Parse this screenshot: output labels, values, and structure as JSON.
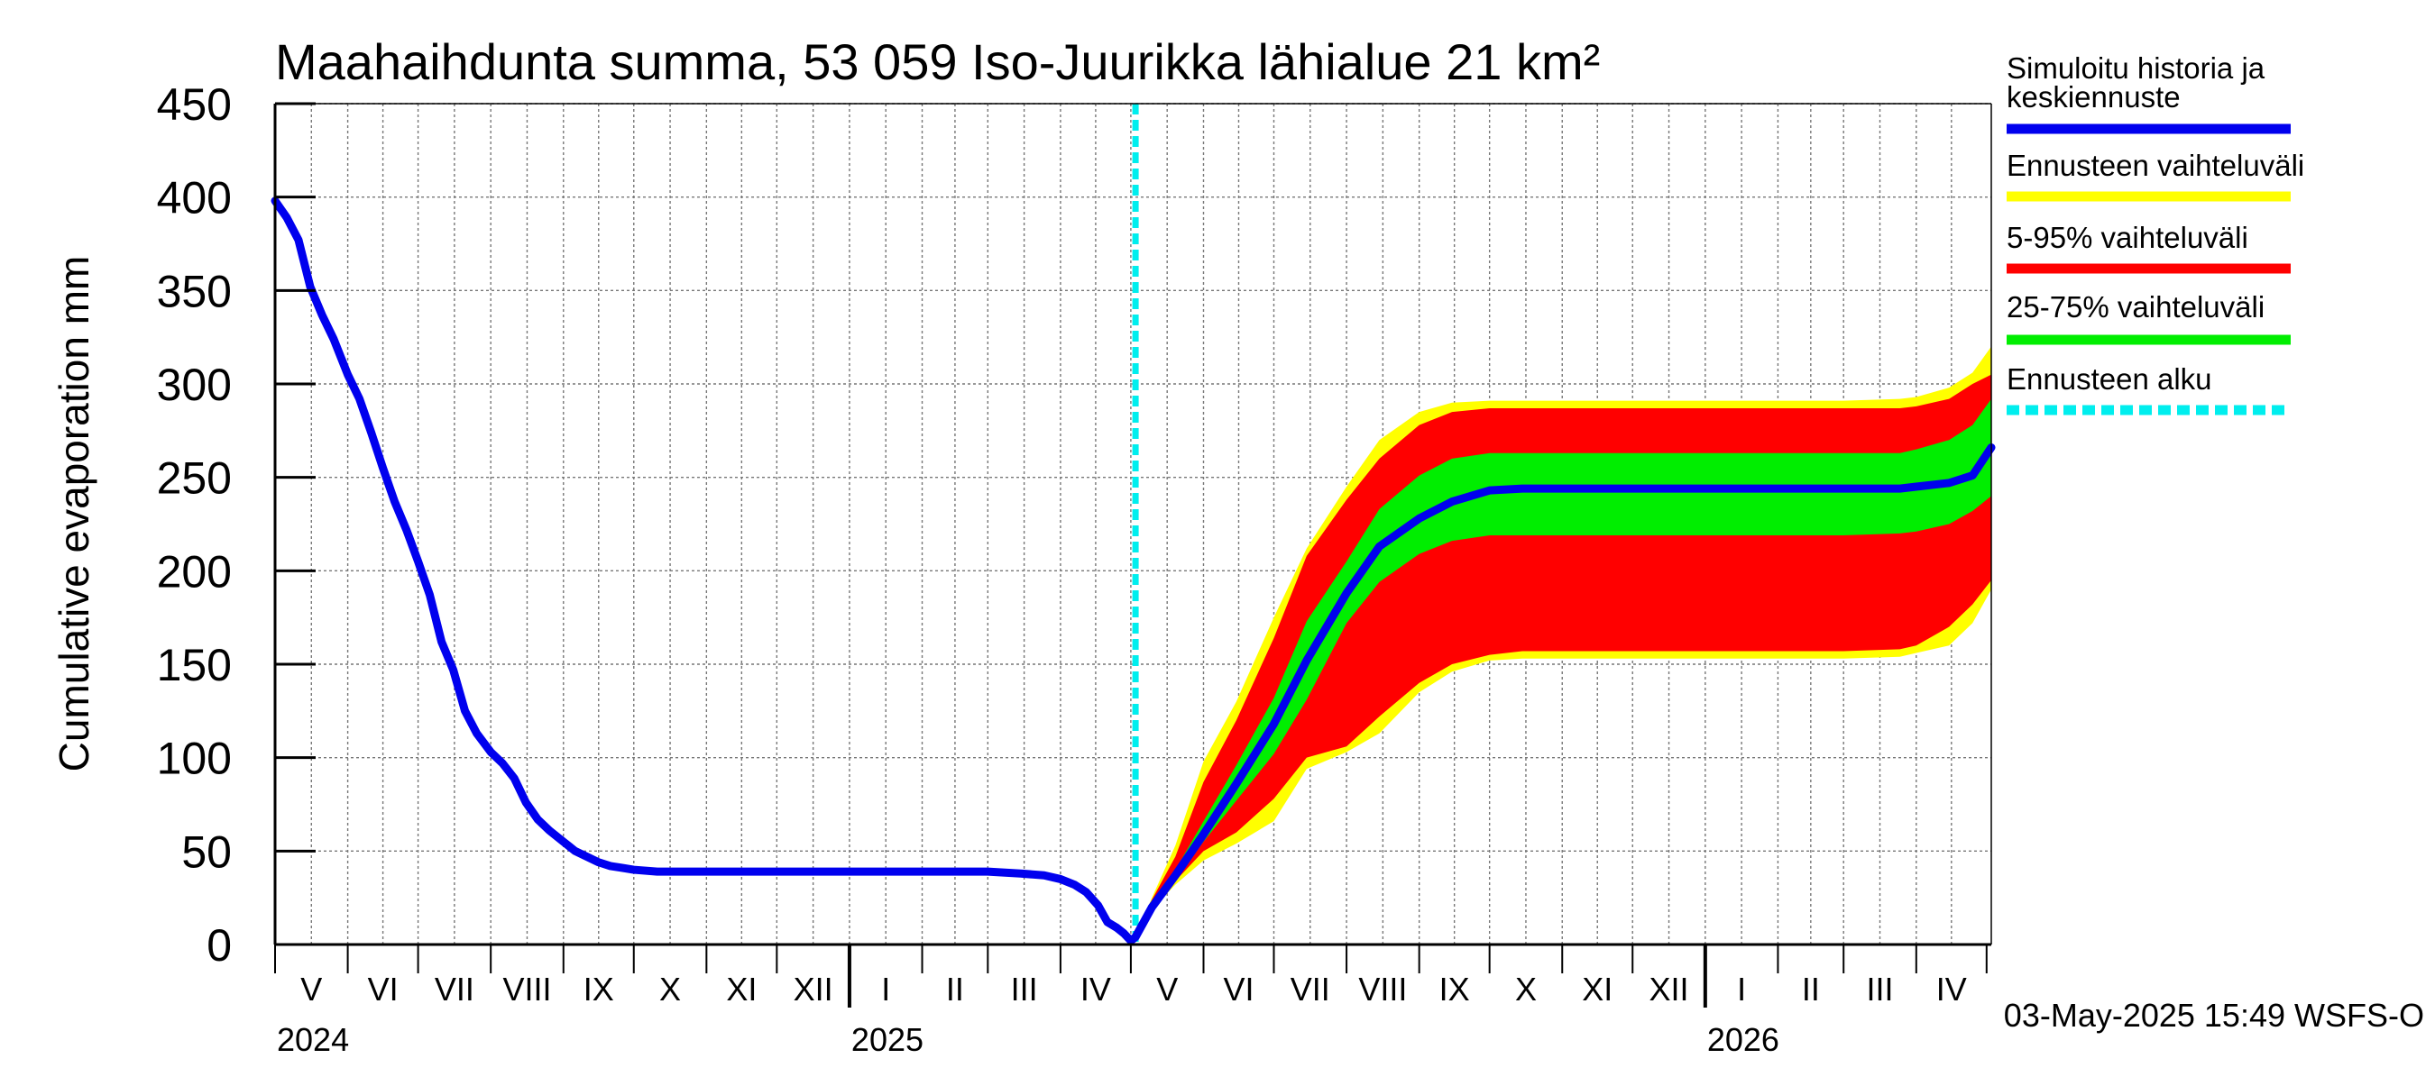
{
  "chart_data": {
    "type": "area",
    "title": "Maahaihdunta summa, 53 059 Iso-Juurikka lähialue 21 km²",
    "ylabel": "Cumulative evaporation   mm",
    "xlabel": "",
    "ylim": [
      0,
      450
    ],
    "yticks": [
      0,
      50,
      100,
      150,
      200,
      250,
      300,
      350,
      400,
      450
    ],
    "xlim": [
      "2024-05-01",
      "2026-05-03"
    ],
    "grid": true,
    "legend_position": "right",
    "months": [
      {
        "label": "V",
        "start": "2024-05-01",
        "end": "2024-06-01"
      },
      {
        "label": "VI",
        "start": "2024-06-01",
        "end": "2024-07-01"
      },
      {
        "label": "VII",
        "start": "2024-07-01",
        "end": "2024-08-01"
      },
      {
        "label": "VIII",
        "start": "2024-08-01",
        "end": "2024-09-01"
      },
      {
        "label": "IX",
        "start": "2024-09-01",
        "end": "2024-10-01"
      },
      {
        "label": "X",
        "start": "2024-10-01",
        "end": "2024-11-01"
      },
      {
        "label": "XI",
        "start": "2024-11-01",
        "end": "2024-12-01"
      },
      {
        "label": "XII",
        "start": "2024-12-01",
        "end": "2025-01-01"
      },
      {
        "label": "I",
        "start": "2025-01-01",
        "end": "2025-02-01"
      },
      {
        "label": "II",
        "start": "2025-02-01",
        "end": "2025-03-01"
      },
      {
        "label": "III",
        "start": "2025-03-01",
        "end": "2025-04-01"
      },
      {
        "label": "IV",
        "start": "2025-04-01",
        "end": "2025-05-01"
      },
      {
        "label": "V",
        "start": "2025-05-01",
        "end": "2025-06-01"
      },
      {
        "label": "VI",
        "start": "2025-06-01",
        "end": "2025-07-01"
      },
      {
        "label": "VII",
        "start": "2025-07-01",
        "end": "2025-08-01"
      },
      {
        "label": "VIII",
        "start": "2025-08-01",
        "end": "2025-09-01"
      },
      {
        "label": "IX",
        "start": "2025-09-01",
        "end": "2025-10-01"
      },
      {
        "label": "X",
        "start": "2025-10-01",
        "end": "2025-11-01"
      },
      {
        "label": "XI",
        "start": "2025-11-01",
        "end": "2025-12-01"
      },
      {
        "label": "XII",
        "start": "2025-12-01",
        "end": "2026-01-01"
      },
      {
        "label": "I",
        "start": "2026-01-01",
        "end": "2026-02-01"
      },
      {
        "label": "II",
        "start": "2026-02-01",
        "end": "2026-03-01"
      },
      {
        "label": "III",
        "start": "2026-03-01",
        "end": "2026-04-01"
      },
      {
        "label": "IV",
        "start": "2026-04-01",
        "end": "2026-05-01"
      }
    ],
    "years": [
      {
        "label": "2024",
        "date": "2024-05-01"
      },
      {
        "label": "2025",
        "date": "2025-01-01"
      },
      {
        "label": "2026",
        "date": "2026-01-01"
      }
    ],
    "forecast_start": "2025-05-03",
    "history": {
      "name": "Simuloitu historia ja keskiennuste",
      "color": "#0000ee",
      "x": [
        "2024-05-01",
        "2024-05-06",
        "2024-05-11",
        "2024-05-16",
        "2024-05-21",
        "2024-05-26",
        "2024-06-01",
        "2024-06-06",
        "2024-06-11",
        "2024-06-16",
        "2024-06-21",
        "2024-06-26",
        "2024-07-01",
        "2024-07-06",
        "2024-07-11",
        "2024-07-16",
        "2024-07-21",
        "2024-07-26",
        "2024-08-01",
        "2024-08-06",
        "2024-08-11",
        "2024-08-16",
        "2024-08-21",
        "2024-08-26",
        "2024-09-01",
        "2024-09-06",
        "2024-09-11",
        "2024-09-16",
        "2024-09-21",
        "2024-09-26",
        "2024-10-01",
        "2024-10-11",
        "2024-10-21",
        "2024-11-01",
        "2024-11-15",
        "2024-12-01",
        "2024-12-15",
        "2025-01-01",
        "2025-01-15",
        "2025-02-01",
        "2025-02-15",
        "2025-03-01",
        "2025-03-15",
        "2025-03-25",
        "2025-04-01",
        "2025-04-07",
        "2025-04-12",
        "2025-04-17",
        "2025-04-21",
        "2025-04-25",
        "2025-04-28",
        "2025-05-01",
        "2025-05-03"
      ],
      "y": [
        398,
        389,
        377,
        352,
        337,
        324,
        305,
        292,
        274,
        255,
        237,
        222,
        205,
        187,
        162,
        147,
        125,
        113,
        103,
        97,
        89,
        76,
        67,
        61,
        55,
        50,
        47,
        44,
        42,
        41,
        40,
        39,
        39,
        39,
        39,
        39,
        39,
        39,
        39,
        39,
        39,
        39,
        38,
        37,
        35,
        32,
        28,
        21,
        12,
        9,
        6,
        2,
        4
      ]
    },
    "forecast": {
      "x": [
        "2025-05-03",
        "2025-05-10",
        "2025-05-20",
        "2025-06-01",
        "2025-06-15",
        "2025-07-01",
        "2025-07-15",
        "2025-08-01",
        "2025-08-15",
        "2025-09-01",
        "2025-09-15",
        "2025-10-01",
        "2025-10-15",
        "2025-11-01",
        "2025-12-01",
        "2026-01-01",
        "2026-02-01",
        "2026-03-01",
        "2026-03-25",
        "2026-04-01",
        "2026-04-15",
        "2026-04-25",
        "2026-05-03"
      ],
      "median": [
        4,
        20,
        37,
        59,
        86,
        118,
        152,
        188,
        213,
        228,
        237,
        243,
        244,
        244,
        244,
        244,
        244,
        244,
        244,
        245,
        247,
        251,
        266
      ],
      "min": [
        4,
        19,
        32,
        45,
        54,
        66,
        94,
        103,
        113,
        135,
        146,
        152,
        153,
        153,
        153,
        153,
        153,
        153,
        154,
        156,
        160,
        172,
        190
      ],
      "max": [
        4,
        25,
        53,
        98,
        130,
        175,
        212,
        245,
        270,
        285,
        290,
        291,
        291,
        291,
        291,
        291,
        291,
        291,
        292,
        293,
        298,
        306,
        320
      ],
      "p05": [
        4,
        20,
        34,
        50,
        60,
        78,
        100,
        106,
        122,
        140,
        150,
        155,
        157,
        157,
        157,
        157,
        157,
        157,
        158,
        160,
        170,
        182,
        195
      ],
      "p95": [
        4,
        24,
        47,
        87,
        120,
        164,
        208,
        238,
        260,
        278,
        285,
        287,
        287,
        287,
        287,
        287,
        287,
        287,
        287,
        288,
        292,
        300,
        305
      ],
      "p25": [
        4,
        20,
        35,
        55,
        77,
        102,
        131,
        172,
        194,
        209,
        216,
        219,
        219,
        219,
        219,
        219,
        219,
        219,
        220,
        221,
        225,
        232,
        240
      ],
      "p75": [
        4,
        22,
        40,
        66,
        96,
        132,
        173,
        205,
        233,
        251,
        260,
        263,
        263,
        263,
        263,
        263,
        263,
        263,
        263,
        265,
        270,
        278,
        292
      ]
    },
    "legend": [
      {
        "label": "Simuloitu historia ja keskiennuste",
        "color": "#0000ee",
        "style": "solid"
      },
      {
        "label": "Ennusteen vaihteluväli",
        "color": "#ffff00",
        "style": "solid"
      },
      {
        "label": "5-95% vaihteluväli",
        "color": "#ff0000",
        "style": "solid"
      },
      {
        "label": "25-75% vaihteluväli",
        "color": "#00ee00",
        "style": "solid"
      },
      {
        "label": "Ennusteen alku",
        "color": "#00eeee",
        "style": "dashed"
      }
    ],
    "footer": "03-May-2025 15:49 WSFS-O"
  }
}
